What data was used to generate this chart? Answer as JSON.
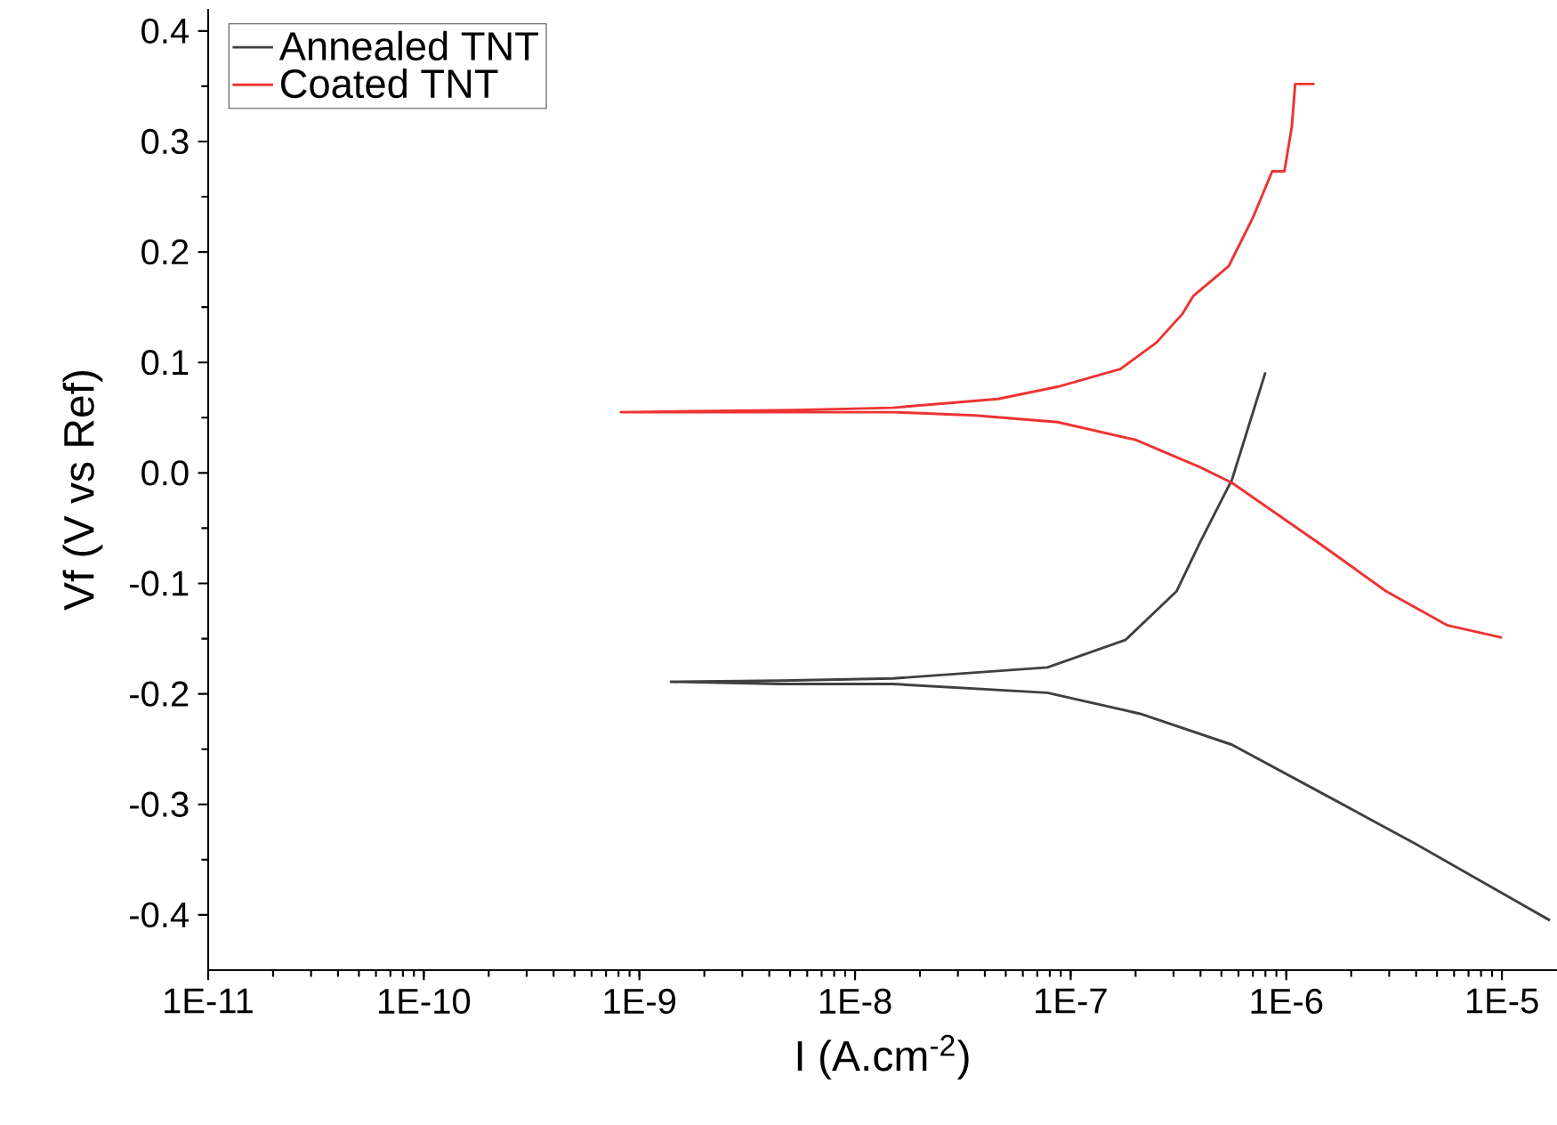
{
  "chart_data": {
    "type": "line",
    "xlabel": "I (A.cm$^{-2}$)",
    "ylabel": "Vf (V vs Ref)",
    "log": "x",
    "xlim": [
      1e-11,
      1.8e-05
    ],
    "ylim": [
      -0.45,
      0.42
    ],
    "xticks": [
      {
        "value": 1e-11,
        "label": "1E-11"
      },
      {
        "value": 1e-10,
        "label": "1E-10"
      },
      {
        "value": 1e-09,
        "label": "1E-9"
      },
      {
        "value": 1e-08,
        "label": "1E-8"
      },
      {
        "value": 1e-07,
        "label": "1E-7"
      },
      {
        "value": 1e-06,
        "label": "1E-6"
      },
      {
        "value": 1e-05,
        "label": "1E-5"
      }
    ],
    "yticks": [
      -0.4,
      -0.3,
      -0.2,
      -0.1,
      {
        "value": 0,
        "label": "0.0"
      },
      0.1,
      0.2,
      0.3,
      0.4
    ],
    "grid": false,
    "legend": "top left",
    "marker": "none",
    "line_style": "solid",
    "series": [
      {
        "name": "Annealed TNT",
        "color": "#404040",
        "x": [
          8e-07,
          5.6e-07,
          4e-07,
          3.1e-07,
          1.8e-07,
          7.8e-08,
          1.5e-08,
          4.5e-09,
          1.4e-09,
          4.5e-09,
          1.5e-08,
          7.8e-08,
          2.1e-07,
          5.6e-07,
          1.5e-06,
          4e-06,
          1.67e-05
        ],
        "values": [
          0.091,
          -0.006,
          -0.062,
          -0.107,
          -0.151,
          -0.176,
          -0.186,
          -0.188,
          -0.189,
          -0.191,
          -0.191,
          -0.199,
          -0.218,
          -0.246,
          -0.291,
          -0.336,
          -0.405
        ]
      },
      {
        "name": "Coated TNT",
        "color": "#ee3333",
        "x": [
          1.35e-06,
          1.1e-06,
          1.06e-06,
          9.8e-07,
          8.6e-07,
          7e-07,
          5.4e-07,
          3.7e-07,
          3.3e-07,
          2.5e-07,
          1.7e-07,
          8.7e-08,
          4.6e-08,
          1.5e-08,
          5.4e-09,
          8.2e-10,
          3.1e-09,
          1.5e-08,
          3.6e-08,
          8.7e-08,
          2e-07,
          4e-07,
          5.6e-07,
          1.5e-06,
          2.9e-06,
          5.6e-06,
          1e-05
        ],
        "values": [
          0.352,
          0.352,
          0.313,
          0.273,
          0.273,
          0.231,
          0.187,
          0.16,
          0.144,
          0.118,
          0.094,
          0.078,
          0.067,
          0.059,
          0.057,
          0.055,
          0.055,
          0.055,
          0.052,
          0.046,
          0.03,
          0.005,
          -0.009,
          -0.067,
          -0.107,
          -0.138,
          -0.149
        ]
      }
    ]
  }
}
